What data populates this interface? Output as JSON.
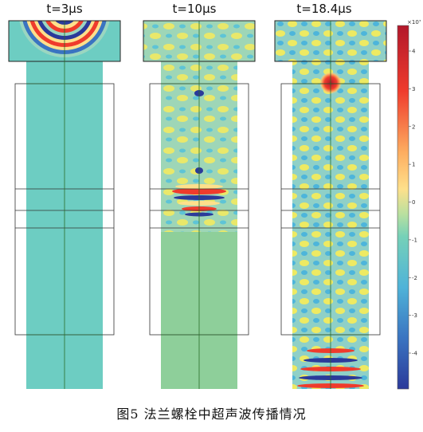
{
  "panels": [
    {
      "title": "t=3μs"
    },
    {
      "title": "t=10μs"
    },
    {
      "title": "t=18.4μs"
    }
  ],
  "colorbar": {
    "exponent": "×10⁷",
    "ticks": [
      "4",
      "3",
      "2",
      "1",
      "0",
      "-1",
      "-2",
      "-3",
      "-4"
    ],
    "colors": {
      "max": "#b2182b",
      "high": "#ef3b2c",
      "warm": "#fee08b",
      "mid": "#76d1b8",
      "cool": "#4fb3d8",
      "min": "#2b3a9a"
    }
  },
  "caption": "图5    法兰螺栓中超声波传播情况"
}
